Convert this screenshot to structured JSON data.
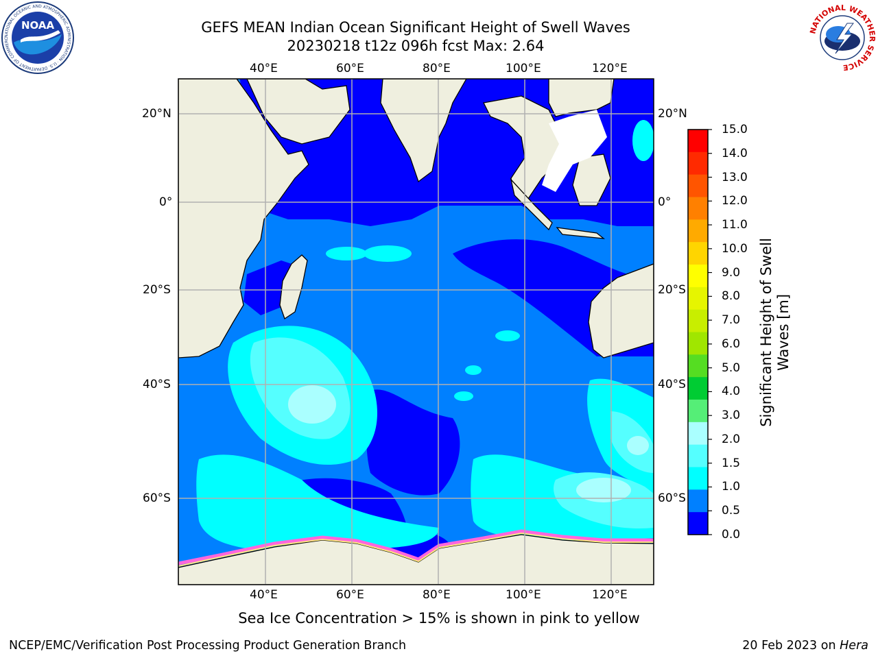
{
  "title": {
    "line1": "GEFS MEAN Indian Ocean Significant Height of Swell Waves",
    "line2": "20230218 t12z 096h fcst   Max: 2.64"
  },
  "logos": {
    "left": {
      "name": "noaa-logo",
      "text": "NOAA",
      "ring_text": "NATIONAL OCEANIC AND ATMOSPHERIC ADMINISTRATION · U.S. DEPARTMENT OF COMMERCE"
    },
    "right": {
      "name": "nws-logo",
      "ring_text": "NATIONAL WEATHER SERVICE"
    }
  },
  "map": {
    "lon_labels": [
      "40°E",
      "60°E",
      "80°E",
      "100°E",
      "120°E"
    ],
    "lat_labels": [
      "20°N",
      "0°",
      "20°S",
      "40°S",
      "60°S"
    ],
    "colors": {
      "land": "#efefdf",
      "ice_free_white": "#ffffff",
      "grid": "#b0b0b0"
    }
  },
  "colorbar": {
    "title": "Significant Height of Swell\nWaves [m]",
    "title_line1": "Significant Height of Swell",
    "title_line2": "Waves [m]",
    "labels": [
      "15.0",
      "14.0",
      "13.0",
      "12.0",
      "11.0",
      "10.0",
      "9.0",
      "8.0",
      "7.0",
      "6.0",
      "5.0",
      "4.0",
      "3.0",
      "2.0",
      "1.5",
      "1.0",
      "0.5",
      "0.0"
    ],
    "colors": [
      "#ff0000",
      "#ff2a00",
      "#ff5500",
      "#ff8000",
      "#ffaa00",
      "#ffd500",
      "#ffff00",
      "#e6f500",
      "#c8ee00",
      "#a0e600",
      "#55dd22",
      "#00cc33",
      "#55ee77",
      "#aaffff",
      "#55ffff",
      "#00ffff",
      "#0080ff",
      "#0000ff"
    ]
  },
  "ice_note": "Sea Ice Concentration > 15% is shown in pink to yellow",
  "footer": {
    "left": "NCEP/EMC/Verification Post Processing Product Generation Branch",
    "right_date": "20 Feb 2023 on",
    "right_host": "Hera"
  }
}
